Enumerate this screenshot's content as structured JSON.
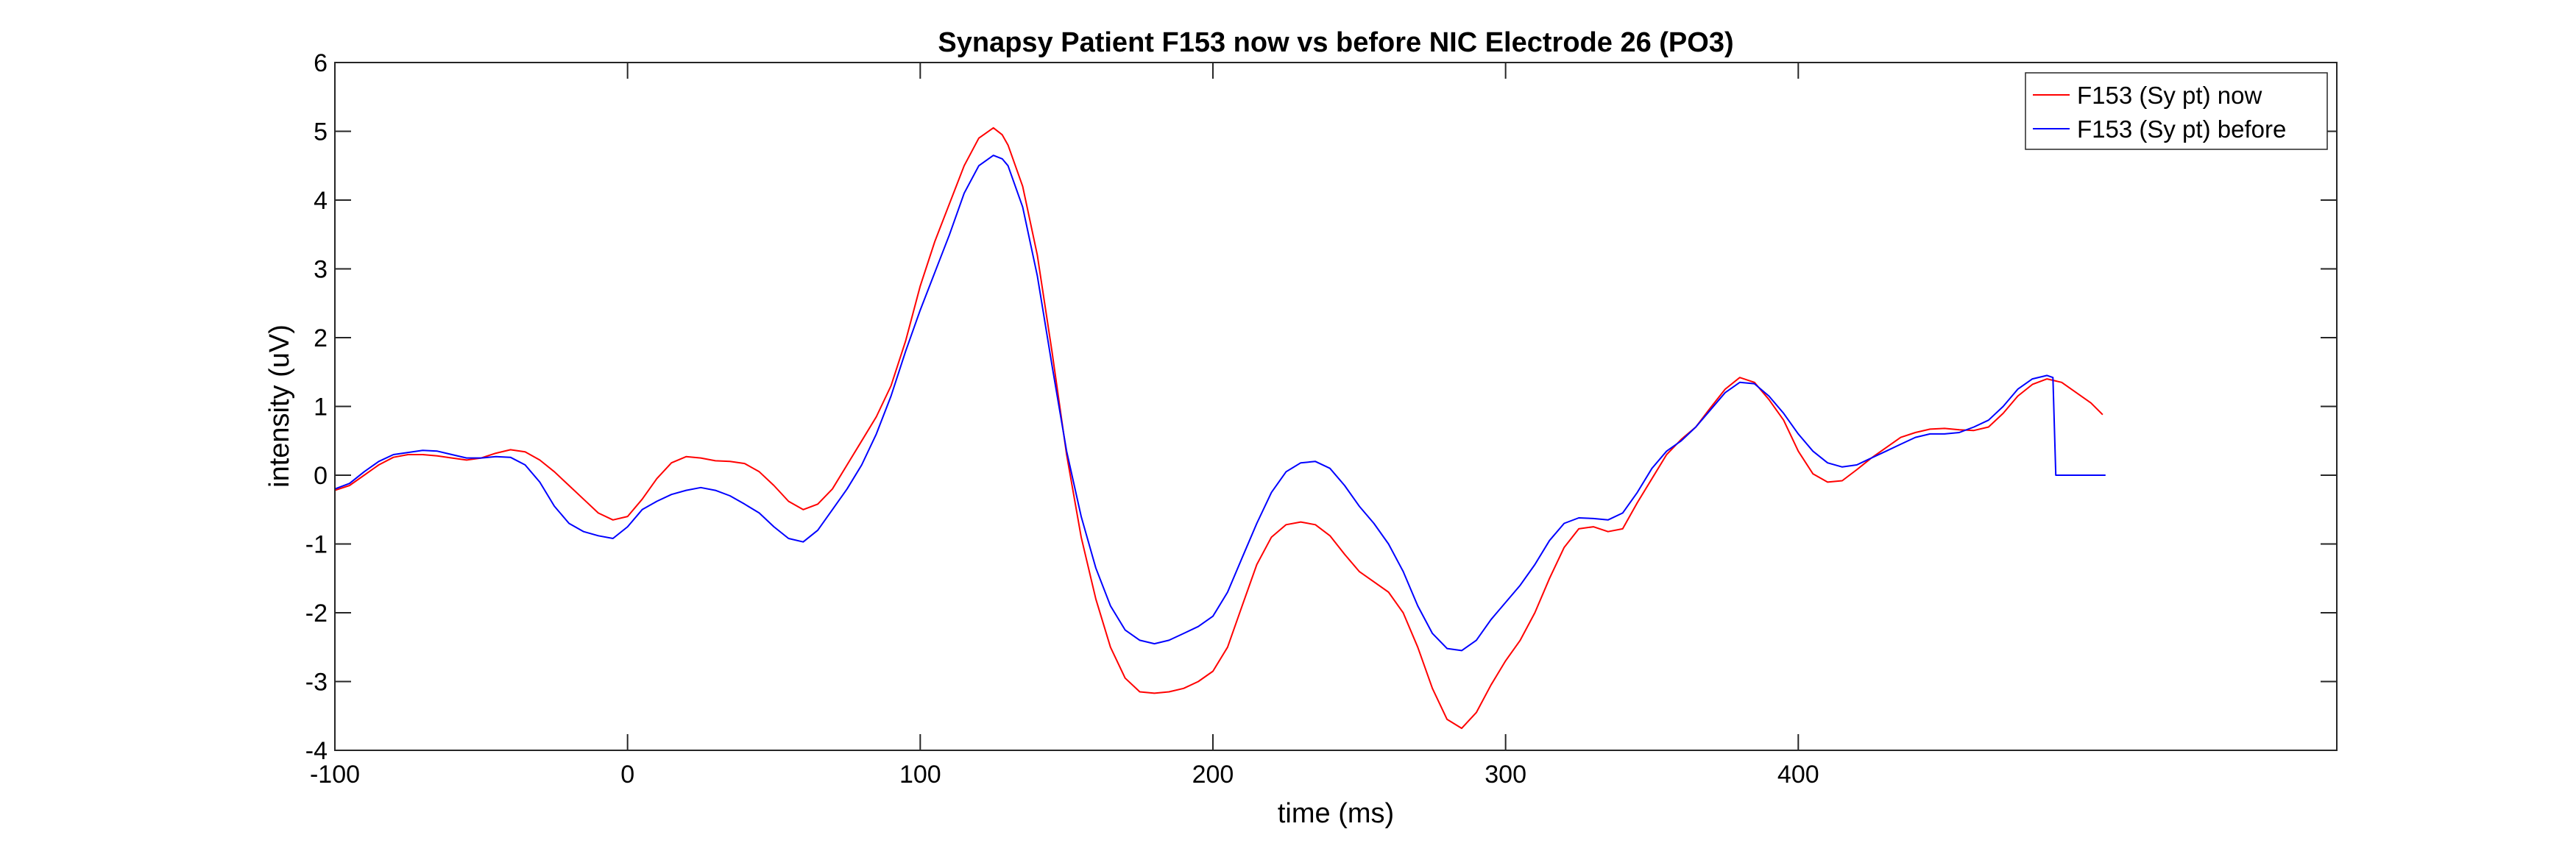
{
  "chart_data": {
    "type": "line",
    "title": "Synapsy Patient F153 now vs before NIC Electrode 26 (PO3)",
    "xlabel": "time (ms)",
    "ylabel": "intensity (uV)",
    "xlim": [
      -100,
      584
    ],
    "ylim": [
      -4,
      6
    ],
    "xticks": [
      -100,
      0,
      100,
      200,
      300,
      400
    ],
    "yticks": [
      -4,
      -3,
      -2,
      -1,
      0,
      1,
      2,
      3,
      4,
      5,
      6
    ],
    "grid": false,
    "legend_position": "top-right",
    "series": [
      {
        "name": "F153 (Sy pt) now",
        "color": "#ff0000",
        "points": [
          [
            -100,
            -0.22
          ],
          [
            -95,
            -0.15
          ],
          [
            -90,
            0.0
          ],
          [
            -85,
            0.15
          ],
          [
            -80,
            0.26
          ],
          [
            -75,
            0.3
          ],
          [
            -70,
            0.3
          ],
          [
            -65,
            0.28
          ],
          [
            -60,
            0.25
          ],
          [
            -55,
            0.22
          ],
          [
            -50,
            0.25
          ],
          [
            -45,
            0.32
          ],
          [
            -40,
            0.37
          ],
          [
            -35,
            0.34
          ],
          [
            -30,
            0.22
          ],
          [
            -25,
            0.05
          ],
          [
            -20,
            -0.15
          ],
          [
            -15,
            -0.35
          ],
          [
            -10,
            -0.55
          ],
          [
            -5,
            -0.65
          ],
          [
            0,
            -0.6
          ],
          [
            5,
            -0.35
          ],
          [
            10,
            -0.05
          ],
          [
            15,
            0.18
          ],
          [
            20,
            0.27
          ],
          [
            25,
            0.25
          ],
          [
            30,
            0.21
          ],
          [
            35,
            0.2
          ],
          [
            40,
            0.17
          ],
          [
            45,
            0.05
          ],
          [
            50,
            -0.15
          ],
          [
            55,
            -0.38
          ],
          [
            60,
            -0.5
          ],
          [
            65,
            -0.42
          ],
          [
            70,
            -0.2
          ],
          [
            75,
            0.15
          ],
          [
            80,
            0.5
          ],
          [
            85,
            0.85
          ],
          [
            90,
            1.3
          ],
          [
            95,
            1.95
          ],
          [
            100,
            2.75
          ],
          [
            105,
            3.4
          ],
          [
            110,
            3.95
          ],
          [
            115,
            4.5
          ],
          [
            120,
            4.9
          ],
          [
            125,
            5.05
          ],
          [
            128,
            4.95
          ],
          [
            130,
            4.8
          ],
          [
            135,
            4.2
          ],
          [
            140,
            3.2
          ],
          [
            145,
            1.8
          ],
          [
            150,
            0.3
          ],
          [
            155,
            -0.9
          ],
          [
            160,
            -1.8
          ],
          [
            165,
            -2.5
          ],
          [
            170,
            -2.95
          ],
          [
            175,
            -3.15
          ],
          [
            180,
            -3.17
          ],
          [
            185,
            -3.15
          ],
          [
            190,
            -3.1
          ],
          [
            195,
            -3.0
          ],
          [
            200,
            -2.85
          ],
          [
            205,
            -2.5
          ],
          [
            210,
            -1.9
          ],
          [
            215,
            -1.3
          ],
          [
            220,
            -0.9
          ],
          [
            225,
            -0.72
          ],
          [
            230,
            -0.68
          ],
          [
            235,
            -0.72
          ],
          [
            240,
            -0.88
          ],
          [
            245,
            -1.15
          ],
          [
            250,
            -1.4
          ],
          [
            255,
            -1.55
          ],
          [
            260,
            -1.7
          ],
          [
            265,
            -2.0
          ],
          [
            270,
            -2.5
          ],
          [
            275,
            -3.1
          ],
          [
            280,
            -3.55
          ],
          [
            285,
            -3.68
          ],
          [
            290,
            -3.45
          ],
          [
            295,
            -3.05
          ],
          [
            300,
            -2.7
          ],
          [
            305,
            -2.4
          ],
          [
            310,
            -2.0
          ],
          [
            315,
            -1.5
          ],
          [
            320,
            -1.05
          ],
          [
            325,
            -0.78
          ],
          [
            330,
            -0.75
          ],
          [
            335,
            -0.82
          ],
          [
            340,
            -0.78
          ],
          [
            345,
            -0.4
          ],
          [
            350,
            -0.05
          ],
          [
            355,
            0.3
          ],
          [
            360,
            0.52
          ],
          [
            365,
            0.7
          ],
          [
            370,
            0.98
          ],
          [
            375,
            1.25
          ],
          [
            380,
            1.42
          ],
          [
            385,
            1.35
          ],
          [
            390,
            1.1
          ],
          [
            395,
            0.8
          ],
          [
            400,
            0.35
          ],
          [
            405,
            0.02
          ],
          [
            410,
            -0.1
          ],
          [
            415,
            -0.08
          ],
          [
            420,
            0.08
          ],
          [
            425,
            0.25
          ],
          [
            430,
            0.4
          ],
          [
            435,
            0.55
          ],
          [
            440,
            0.62
          ],
          [
            445,
            0.67
          ],
          [
            450,
            0.68
          ],
          [
            455,
            0.66
          ],
          [
            460,
            0.65
          ],
          [
            465,
            0.7
          ],
          [
            470,
            0.9
          ],
          [
            475,
            1.15
          ],
          [
            480,
            1.32
          ],
          [
            485,
            1.4
          ],
          [
            490,
            1.35
          ],
          [
            495,
            1.2
          ],
          [
            500,
            1.05
          ],
          [
            504,
            0.88
          ]
        ]
      },
      {
        "name": "F153 (Sy pt) before",
        "color": "#0000ff",
        "points": [
          [
            -100,
            -0.2
          ],
          [
            -95,
            -0.12
          ],
          [
            -90,
            0.05
          ],
          [
            -85,
            0.2
          ],
          [
            -80,
            0.3
          ],
          [
            -75,
            0.33
          ],
          [
            -70,
            0.36
          ],
          [
            -65,
            0.35
          ],
          [
            -60,
            0.3
          ],
          [
            -55,
            0.25
          ],
          [
            -50,
            0.25
          ],
          [
            -45,
            0.27
          ],
          [
            -40,
            0.26
          ],
          [
            -35,
            0.15
          ],
          [
            -30,
            -0.1
          ],
          [
            -25,
            -0.45
          ],
          [
            -20,
            -0.7
          ],
          [
            -15,
            -0.82
          ],
          [
            -10,
            -0.88
          ],
          [
            -5,
            -0.92
          ],
          [
            0,
            -0.75
          ],
          [
            5,
            -0.5
          ],
          [
            10,
            -0.38
          ],
          [
            15,
            -0.28
          ],
          [
            20,
            -0.22
          ],
          [
            25,
            -0.18
          ],
          [
            30,
            -0.22
          ],
          [
            35,
            -0.3
          ],
          [
            40,
            -0.42
          ],
          [
            45,
            -0.55
          ],
          [
            50,
            -0.75
          ],
          [
            55,
            -0.92
          ],
          [
            60,
            -0.97
          ],
          [
            65,
            -0.8
          ],
          [
            70,
            -0.5
          ],
          [
            75,
            -0.2
          ],
          [
            80,
            0.15
          ],
          [
            85,
            0.6
          ],
          [
            90,
            1.15
          ],
          [
            95,
            1.8
          ],
          [
            100,
            2.4
          ],
          [
            105,
            2.95
          ],
          [
            110,
            3.5
          ],
          [
            115,
            4.1
          ],
          [
            120,
            4.5
          ],
          [
            125,
            4.65
          ],
          [
            128,
            4.6
          ],
          [
            130,
            4.5
          ],
          [
            135,
            3.9
          ],
          [
            140,
            2.9
          ],
          [
            145,
            1.6
          ],
          [
            150,
            0.35
          ],
          [
            155,
            -0.6
          ],
          [
            160,
            -1.35
          ],
          [
            165,
            -1.9
          ],
          [
            170,
            -2.25
          ],
          [
            175,
            -2.4
          ],
          [
            180,
            -2.45
          ],
          [
            185,
            -2.4
          ],
          [
            190,
            -2.3
          ],
          [
            195,
            -2.2
          ],
          [
            200,
            -2.05
          ],
          [
            205,
            -1.7
          ],
          [
            210,
            -1.2
          ],
          [
            215,
            -0.7
          ],
          [
            220,
            -0.25
          ],
          [
            225,
            0.05
          ],
          [
            230,
            0.18
          ],
          [
            235,
            0.2
          ],
          [
            240,
            0.1
          ],
          [
            245,
            -0.15
          ],
          [
            250,
            -0.45
          ],
          [
            255,
            -0.7
          ],
          [
            260,
            -1.0
          ],
          [
            265,
            -1.4
          ],
          [
            270,
            -1.9
          ],
          [
            275,
            -2.3
          ],
          [
            280,
            -2.52
          ],
          [
            285,
            -2.55
          ],
          [
            290,
            -2.4
          ],
          [
            295,
            -2.1
          ],
          [
            300,
            -1.85
          ],
          [
            305,
            -1.6
          ],
          [
            310,
            -1.3
          ],
          [
            315,
            -0.95
          ],
          [
            320,
            -0.7
          ],
          [
            325,
            -0.62
          ],
          [
            330,
            -0.63
          ],
          [
            335,
            -0.65
          ],
          [
            340,
            -0.55
          ],
          [
            345,
            -0.25
          ],
          [
            350,
            0.1
          ],
          [
            355,
            0.35
          ],
          [
            360,
            0.5
          ],
          [
            365,
            0.7
          ],
          [
            370,
            0.95
          ],
          [
            375,
            1.2
          ],
          [
            380,
            1.35
          ],
          [
            385,
            1.33
          ],
          [
            390,
            1.15
          ],
          [
            395,
            0.9
          ],
          [
            400,
            0.6
          ],
          [
            405,
            0.35
          ],
          [
            410,
            0.18
          ],
          [
            415,
            0.12
          ],
          [
            420,
            0.15
          ],
          [
            425,
            0.25
          ],
          [
            430,
            0.35
          ],
          [
            435,
            0.45
          ],
          [
            440,
            0.55
          ],
          [
            445,
            0.6
          ],
          [
            450,
            0.6
          ],
          [
            455,
            0.62
          ],
          [
            460,
            0.7
          ],
          [
            465,
            0.8
          ],
          [
            470,
            1.0
          ],
          [
            475,
            1.25
          ],
          [
            480,
            1.4
          ],
          [
            485,
            1.45
          ],
          [
            487,
            1.42
          ],
          [
            488,
            0.0
          ],
          [
            505,
            0.0
          ]
        ]
      }
    ]
  }
}
